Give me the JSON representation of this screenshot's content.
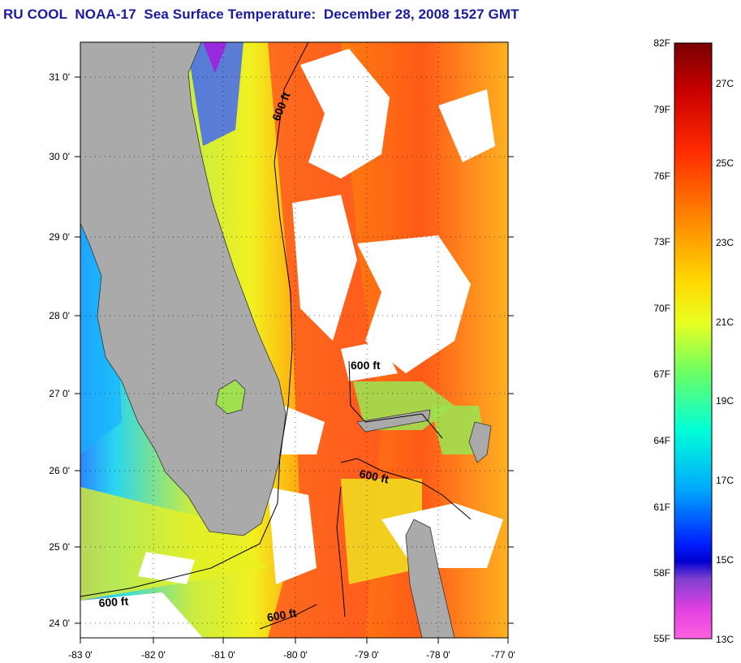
{
  "title": "RU COOL  NOAA-17  Sea Surface Temperature:  December 28, 2008 1527 GMT",
  "axes": {
    "lat_ticks": [
      "31 0'",
      "30 0'",
      "29 0'",
      "28 0'",
      "27 0'",
      "26 0'",
      "25 0'",
      "24 0'"
    ],
    "lon_ticks": [
      "-83 0'",
      "-82 0'",
      "-81 0'",
      "-80 0'",
      "-79 0'",
      "-78 0'",
      "-77 0'"
    ]
  },
  "contours": {
    "label": "600 ft"
  },
  "colorbar": {
    "fahrenheit": [
      "82F",
      "79F",
      "76F",
      "73F",
      "70F",
      "67F",
      "64F",
      "61F",
      "58F",
      "55F"
    ],
    "celsius": [
      "27C",
      "25C",
      "23C",
      "21C",
      "19C",
      "17C",
      "15C",
      "13C"
    ]
  },
  "colors": {
    "land": "#aaaaaa",
    "cloud": "#ffffff",
    "title": "#1a1aa0"
  }
}
